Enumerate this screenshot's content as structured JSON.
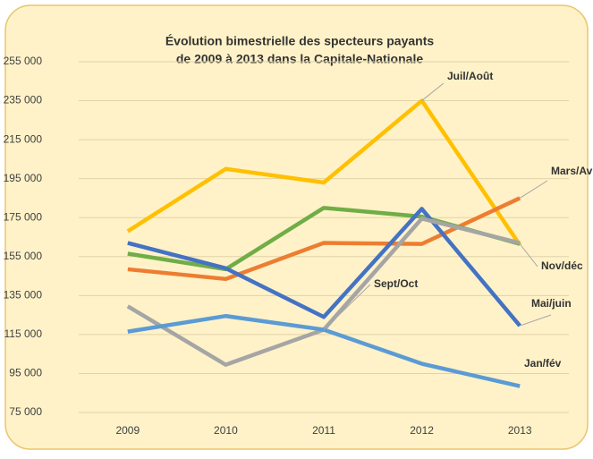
{
  "chart_data": {
    "type": "line",
    "title_lines": [
      "Évolution bimestrielle des specteurs payants",
      "de 2009 à 2013  dans la Capitale-Nationale"
    ],
    "categories": [
      "2009",
      "2010",
      "2011",
      "2012",
      "2013"
    ],
    "series": [
      {
        "name": "Juil/Août",
        "color": "#ffc000",
        "values": [
          168000,
          200000,
          193000,
          235000,
          161000
        ]
      },
      {
        "name": "Mars/Avr",
        "color": "#ed7d31",
        "values": [
          148500,
          143500,
          162000,
          161500,
          185000
        ]
      },
      {
        "name": "Nov/déc",
        "color": "#70ad47",
        "values": [
          156500,
          148500,
          180000,
          175500,
          161500
        ]
      },
      {
        "name": "Mai/juin",
        "color": "#4472c4",
        "values": [
          162000,
          149000,
          124000,
          179500,
          119500
        ]
      },
      {
        "name": "Sept/Oct",
        "color": "#a5a5a5",
        "values": [
          129500,
          99500,
          117500,
          174500,
          162000
        ]
      },
      {
        "name": "Jan/fév",
        "color": "#5b9bd5",
        "values": [
          116500,
          124500,
          117500,
          100000,
          88500
        ]
      }
    ],
    "ylim": [
      75000,
      255000
    ],
    "yticks": [
      {
        "value": 75000,
        "label": "75 000"
      },
      {
        "value": 95000,
        "label": "95 000"
      },
      {
        "value": 115000,
        "label": "115 000"
      },
      {
        "value": 135000,
        "label": "135 000"
      },
      {
        "value": 155000,
        "label": "155 000"
      },
      {
        "value": 175000,
        "label": "175 000"
      },
      {
        "value": 195000,
        "label": "195 000"
      },
      {
        "value": 215000,
        "label": "215 000"
      },
      {
        "value": 235000,
        "label": "235 000"
      },
      {
        "value": 255000,
        "label": "255 000"
      }
    ],
    "grid": true
  }
}
